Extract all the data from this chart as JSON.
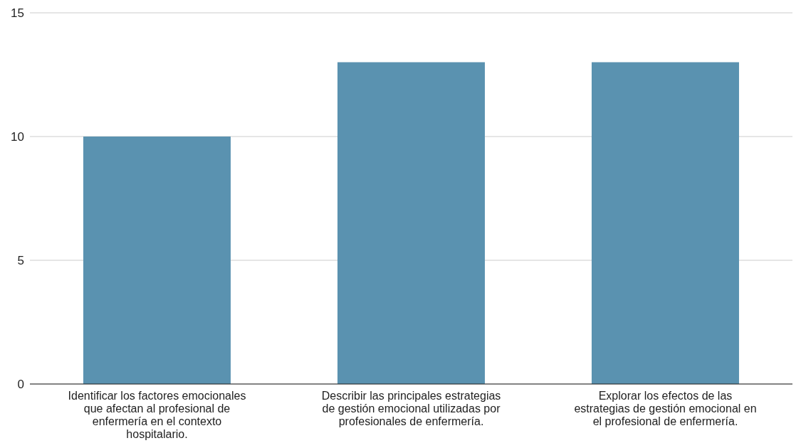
{
  "chart_data": {
    "type": "bar",
    "categories": [
      "Identificar los factores emocionales que afectan al profesional de enfermería en el contexto hospitalario.",
      "Describir las principales estrategias de gestión emocional utilizadas por profesionales de enfermería.",
      "Explorar los efectos de las estrategias de gestión emocional en el profesional de enfermería."
    ],
    "values": [
      10,
      13,
      13
    ],
    "color": "#5a92b0",
    "ylim": [
      0,
      15
    ],
    "yticks": [
      0,
      5,
      10,
      15
    ],
    "grid": "y",
    "legend": false
  }
}
